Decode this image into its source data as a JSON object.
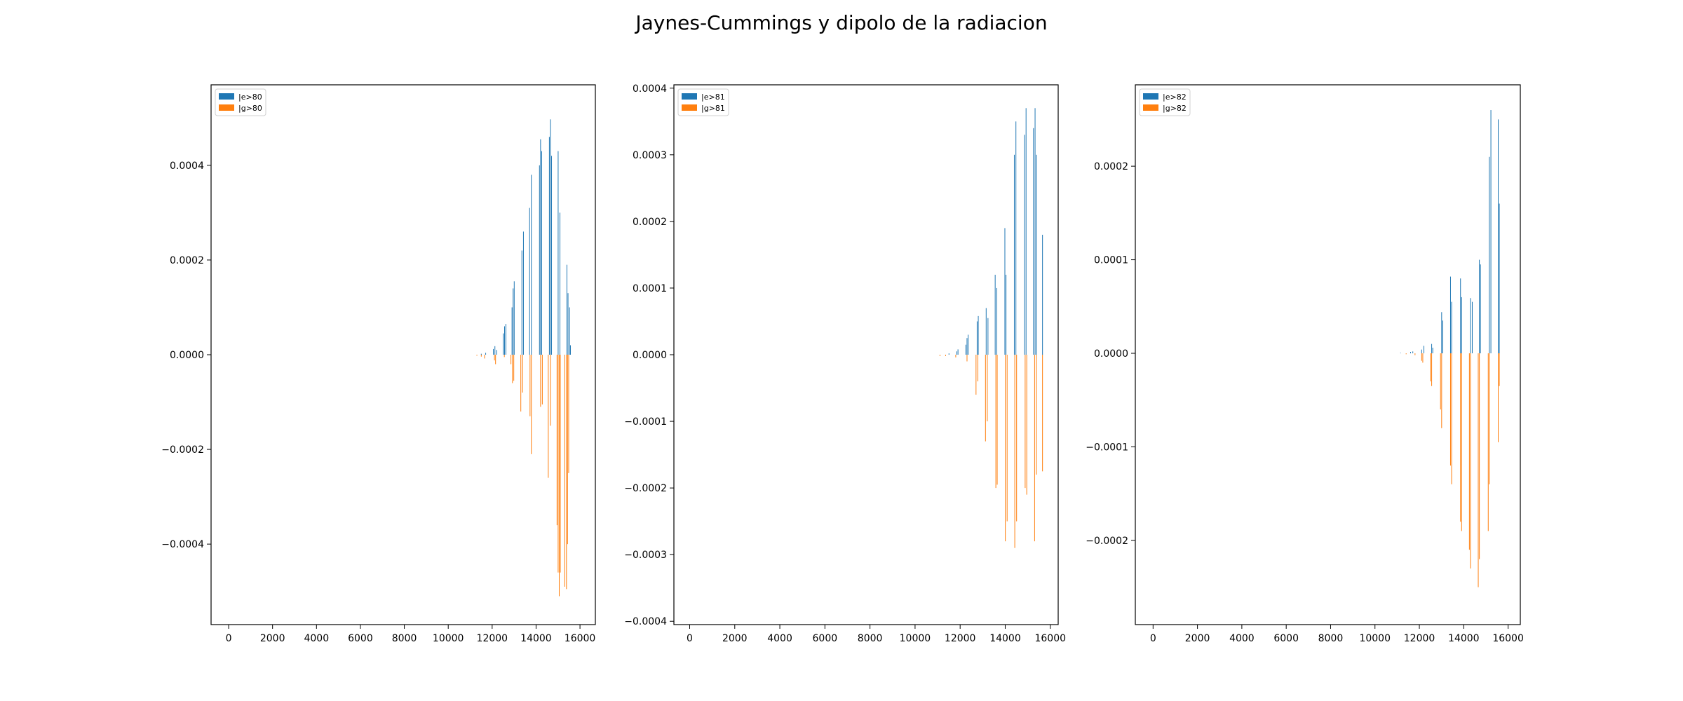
{
  "figure": {
    "title": "Jaynes-Cummings y dipolo de la radiacion"
  },
  "colors": {
    "excited": "#1f77b4",
    "ground": "#ff7f0e"
  },
  "chart_data": [
    {
      "type": "bar",
      "xlim": [
        -800,
        16700
      ],
      "ylim": [
        -0.00057,
        0.00057
      ],
      "xticks": [
        0,
        2000,
        4000,
        6000,
        8000,
        10000,
        12000,
        14000,
        16000
      ],
      "yticks": [
        -0.0004,
        -0.0002,
        0.0,
        0.0002,
        0.0004
      ],
      "ytick_labels": [
        "−0.0004",
        "−0.0002",
        "0.0000",
        "0.0002",
        "0.0004"
      ],
      "legend_position": "upper-left",
      "series": [
        {
          "name": "|e>80",
          "color": "#1f77b4",
          "bars": [
            [
              11500,
              2e-06
            ],
            [
              11700,
              4e-06
            ],
            [
              12050,
              1.2e-05
            ],
            [
              12120,
              1.8e-05
            ],
            [
              12200,
              1e-05
            ],
            [
              12500,
              4.5e-05
            ],
            [
              12560,
              6e-05
            ],
            [
              12620,
              6.5e-05
            ],
            [
              12900,
              0.0001
            ],
            [
              12950,
              0.00014
            ],
            [
              13000,
              0.000155
            ],
            [
              13350,
              0.00022
            ],
            [
              13420,
              0.00026
            ],
            [
              13700,
              0.00031
            ],
            [
              13780,
              0.00038
            ],
            [
              14150,
              0.0004
            ],
            [
              14200,
              0.000455
            ],
            [
              14250,
              0.00043
            ],
            [
              14600,
              0.00046
            ],
            [
              14650,
              0.000497
            ],
            [
              14700,
              0.00042
            ],
            [
              15000,
              0.00043
            ],
            [
              15080,
              0.0003
            ],
            [
              15400,
              0.00019
            ],
            [
              15450,
              0.00013
            ],
            [
              15520,
              0.0001
            ],
            [
              15560,
              2e-05
            ]
          ]
        },
        {
          "name": "|g>80",
          "color": "#ff7f0e",
          "bars": [
            [
              11300,
              -2e-06
            ],
            [
              11500,
              -4e-06
            ],
            [
              11650,
              -8e-06
            ],
            [
              12100,
              -1.2e-05
            ],
            [
              12150,
              -2e-05
            ],
            [
              12550,
              -5e-06
            ],
            [
              12850,
              -2e-05
            ],
            [
              12920,
              -6e-05
            ],
            [
              12980,
              -5.5e-05
            ],
            [
              13300,
              -0.00012
            ],
            [
              13380,
              -8e-05
            ],
            [
              13720,
              -0.00013
            ],
            [
              13780,
              -0.00021
            ],
            [
              14200,
              -0.00011
            ],
            [
              14280,
              -0.000105
            ],
            [
              14550,
              -0.00026
            ],
            [
              14650,
              -0.00015
            ],
            [
              14950,
              -0.00036
            ],
            [
              15000,
              -0.00046
            ],
            [
              15050,
              -0.00051
            ],
            [
              15100,
              -0.00046
            ],
            [
              15300,
              -0.00049
            ],
            [
              15380,
              -0.000495
            ],
            [
              15430,
              -0.0004
            ],
            [
              15480,
              -0.00025
            ]
          ]
        }
      ]
    },
    {
      "type": "bar",
      "xlim": [
        -700,
        16350
      ],
      "ylim": [
        -0.000405,
        0.000405
      ],
      "xticks": [
        0,
        2000,
        4000,
        6000,
        8000,
        10000,
        12000,
        14000,
        16000
      ],
      "yticks": [
        -0.0004,
        -0.0003,
        -0.0002,
        -0.0001,
        0.0,
        0.0001,
        0.0002,
        0.0003,
        0.0004
      ],
      "ytick_labels": [
        "−0.0004",
        "−0.0003",
        "−0.0002",
        "−0.0001",
        "0.0000",
        "0.0001",
        "0.0002",
        "0.0003",
        "0.0004"
      ],
      "legend_position": "upper-left",
      "series": [
        {
          "name": "|e>81",
          "color": "#1f77b4",
          "bars": [
            [
              11500,
              2e-06
            ],
            [
              11850,
              5e-06
            ],
            [
              11900,
              8e-06
            ],
            [
              12250,
              1.5e-05
            ],
            [
              12300,
              2.5e-05
            ],
            [
              12350,
              3e-05
            ],
            [
              12750,
              5e-05
            ],
            [
              12800,
              5.8e-05
            ],
            [
              13150,
              7e-05
            ],
            [
              13230,
              5.5e-05
            ],
            [
              13550,
              0.00012
            ],
            [
              13620,
              0.0001
            ],
            [
              13980,
              0.00019
            ],
            [
              14030,
              0.00012
            ],
            [
              14400,
              0.0003
            ],
            [
              14470,
              0.00035
            ],
            [
              14850,
              0.00033
            ],
            [
              14920,
              0.00037
            ],
            [
              15250,
              0.00034
            ],
            [
              15320,
              0.00037
            ],
            [
              15380,
              0.0003
            ],
            [
              15650,
              0.00018
            ]
          ]
        },
        {
          "name": "|g>81",
          "color": "#ff7f0e",
          "bars": [
            [
              11100,
              -2e-06
            ],
            [
              11350,
              -2e-06
            ],
            [
              11800,
              -4e-06
            ],
            [
              12300,
              -1e-05
            ],
            [
              12700,
              -6e-05
            ],
            [
              12780,
              -4e-05
            ],
            [
              13120,
              -0.00013
            ],
            [
              13200,
              -0.0001
            ],
            [
              13580,
              -0.0002
            ],
            [
              13640,
              -0.000195
            ],
            [
              14000,
              -0.00028
            ],
            [
              14080,
              -0.00025
            ],
            [
              14420,
              -0.00029
            ],
            [
              14500,
              -0.00025
            ],
            [
              14880,
              -0.0002
            ],
            [
              14950,
              -0.00021
            ],
            [
              15300,
              -0.00028
            ],
            [
              15380,
              -0.00018
            ],
            [
              15650,
              -0.000175
            ]
          ]
        }
      ]
    },
    {
      "type": "bar",
      "xlim": [
        -800,
        16550
      ],
      "ylim": [
        -0.00029,
        0.000287
      ],
      "xticks": [
        0,
        2000,
        4000,
        6000,
        8000,
        10000,
        12000,
        14000,
        16000
      ],
      "yticks": [
        -0.0002,
        -0.0001,
        0.0,
        0.0001,
        0.0002
      ],
      "ytick_labels": [
        "−0.0002",
        "−0.0001",
        "0.0000",
        "0.0001",
        "0.0002"
      ],
      "legend_position": "upper-left",
      "series": [
        {
          "name": "|e>82",
          "color": "#1f77b4",
          "bars": [
            [
              11150,
              5e-07
            ],
            [
              11600,
              1.5e-06
            ],
            [
              11700,
              2e-06
            ],
            [
              12100,
              4e-06
            ],
            [
              12200,
              8e-06
            ],
            [
              12550,
              1e-05
            ],
            [
              12600,
              6e-06
            ],
            [
              13000,
              4.4e-05
            ],
            [
              13050,
              3.5e-05
            ],
            [
              13400,
              8.2e-05
            ],
            [
              13450,
              5.5e-05
            ],
            [
              13850,
              8e-05
            ],
            [
              13900,
              6e-05
            ],
            [
              14300,
              5.9e-05
            ],
            [
              14380,
              5.5e-05
            ],
            [
              14700,
              0.0001
            ],
            [
              14750,
              9.5e-05
            ],
            [
              15150,
              0.00021
            ],
            [
              15220,
              0.00026
            ],
            [
              15550,
              0.00025
            ],
            [
              15600,
              0.00016
            ]
          ]
        },
        {
          "name": "|g>82",
          "color": "#ff7f0e",
          "bars": [
            [
              11400,
              -1e-06
            ],
            [
              11800,
              -2e-06
            ],
            [
              12100,
              -8e-06
            ],
            [
              12150,
              -1e-05
            ],
            [
              12500,
              -3e-05
            ],
            [
              12550,
              -3.5e-05
            ],
            [
              12950,
              -6e-05
            ],
            [
              13000,
              -8e-05
            ],
            [
              13400,
              -0.00012
            ],
            [
              13450,
              -0.00014
            ],
            [
              13850,
              -0.00018
            ],
            [
              13900,
              -0.00019
            ],
            [
              14250,
              -0.00021
            ],
            [
              14300,
              -0.00023
            ],
            [
              14650,
              -0.00025
            ],
            [
              14700,
              -0.00022
            ],
            [
              15100,
              -0.00019
            ],
            [
              15150,
              -0.00014
            ],
            [
              15550,
              -9.5e-05
            ],
            [
              15600,
              -3.5e-05
            ]
          ]
        }
      ]
    }
  ]
}
